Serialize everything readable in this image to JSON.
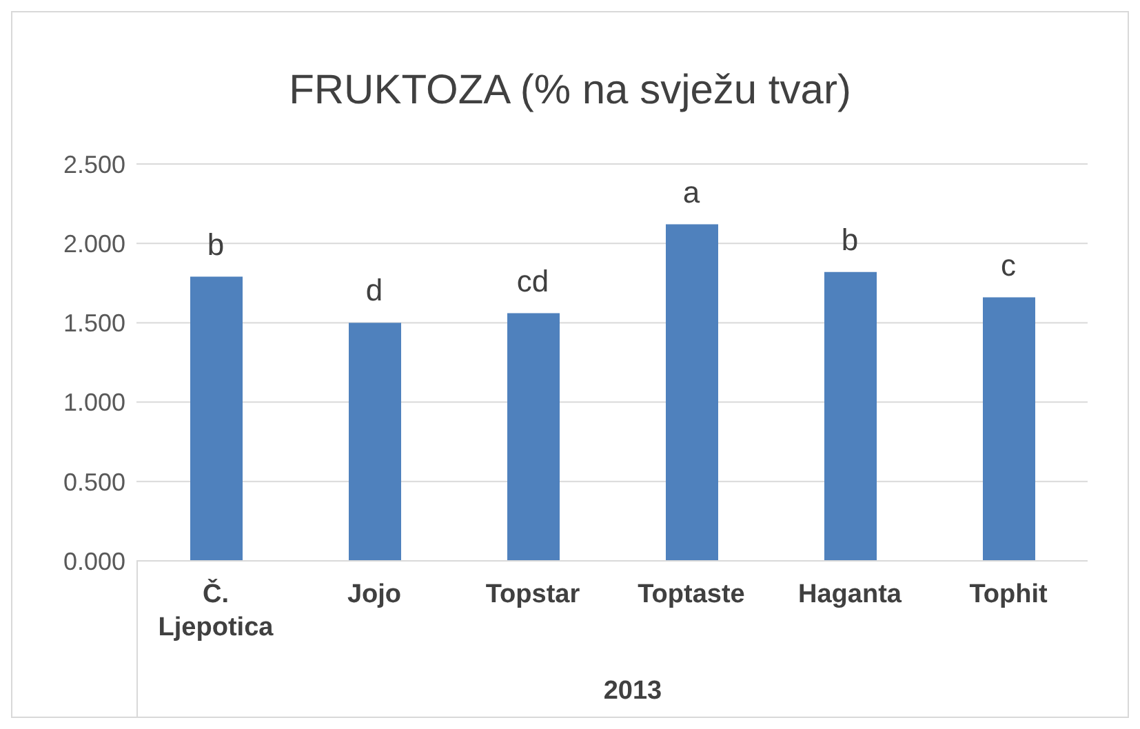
{
  "chart_data": {
    "type": "bar",
    "title": "FRUKTOZA (% na svježu tvar)",
    "xlabel": "2013",
    "categories": [
      "Č. Ljepotica",
      "Jojo",
      "Topstar",
      "Toptaste",
      "Haganta",
      "Tophit"
    ],
    "values": [
      1.79,
      1.5,
      1.56,
      2.12,
      1.82,
      1.66
    ],
    "color": "#4f81bd",
    "ylim": [
      0,
      2.5
    ],
    "yticks": [
      {
        "value": 0,
        "label": "0.000"
      },
      {
        "value": 0.5,
        "label": "0.500"
      },
      {
        "value": 1,
        "label": "1.000"
      },
      {
        "value": 1.5,
        "label": "1.500"
      },
      {
        "value": 2,
        "label": "2.000"
      },
      {
        "value": 2.5,
        "label": "2.500"
      }
    ],
    "grid": "y",
    "legend": false,
    "annotations": [
      {
        "text": "b",
        "x": "Č. Ljepotica",
        "y": 1.79
      },
      {
        "text": "d",
        "x": "Jojo",
        "y": 1.5
      },
      {
        "text": "cd",
        "x": "Topstar",
        "y": 1.56
      },
      {
        "text": "a",
        "x": "Toptaste",
        "y": 2.12
      },
      {
        "text": "b",
        "x": "Haganta",
        "y": 1.82
      },
      {
        "text": "c",
        "x": "Tophit",
        "y": 1.66
      }
    ]
  }
}
